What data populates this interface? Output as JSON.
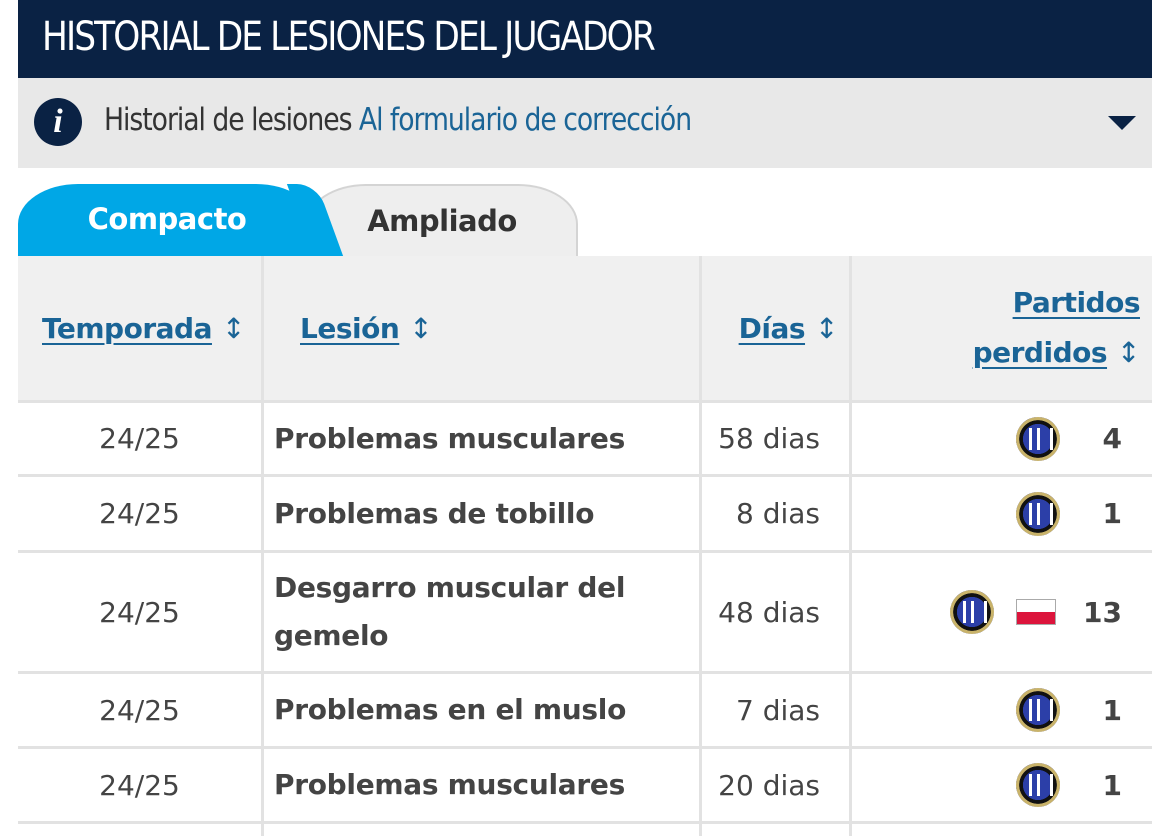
{
  "header": {
    "title": "HISTORIAL DE LESIONES DEL JUGADOR"
  },
  "info": {
    "icon": "info-icon",
    "text": "Historial de lesiones",
    "link": "Al formulario de corrección",
    "toggle_icon": "chevron-down-icon"
  },
  "tabs": [
    {
      "label": "Compacto",
      "active": true
    },
    {
      "label": "Ampliado",
      "active": false
    }
  ],
  "table": {
    "columns": [
      {
        "label": "Temporada",
        "sort_icon": "↕"
      },
      {
        "label": "Lesión",
        "sort_icon": "↕"
      },
      {
        "label": "Días",
        "sort_icon": "↕"
      },
      {
        "label": "Partidos perdidos",
        "label_line1": "Partidos",
        "label_line2": "perdidos",
        "sort_icon": "↕"
      }
    ],
    "rows": [
      {
        "season": "24/25",
        "injury": "Problemas musculares",
        "days": "58 dias",
        "games": "4",
        "club": "inter-crest-icon",
        "flag": null
      },
      {
        "season": "24/25",
        "injury": "Problemas de tobillo",
        "days": "8 dias",
        "games": "1",
        "club": "inter-crest-icon",
        "flag": null
      },
      {
        "season": "24/25",
        "injury": "Desgarro muscular del gemelo",
        "injury_line1": "Desgarro muscular del",
        "injury_line2": "gemelo",
        "days": "48 dias",
        "games": "13",
        "club": "inter-crest-icon",
        "flag": "poland-flag-icon"
      },
      {
        "season": "24/25",
        "injury": "Problemas en el muslo",
        "days": "7 dias",
        "games": "1",
        "club": "inter-crest-icon",
        "flag": null
      },
      {
        "season": "24/25",
        "injury": "Problemas musculares",
        "days": "20 dias",
        "games": "1",
        "club": "inter-crest-icon",
        "flag": null
      }
    ]
  },
  "colors": {
    "header_bg": "#0a2244",
    "tab_active": "#00a7e6",
    "link": "#1a6496"
  }
}
